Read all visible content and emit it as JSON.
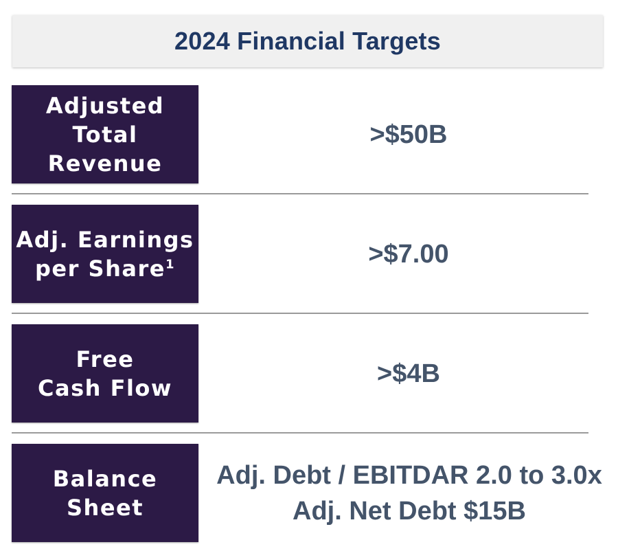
{
  "header": {
    "title": "2024 Financial Targets"
  },
  "rows": [
    {
      "label": "Adjusted\nTotal\nRevenue",
      "values": [
        ">$50B"
      ]
    },
    {
      "label": "Adj. Earnings\nper Share",
      "superscript": "1",
      "values": [
        ">$7.00"
      ]
    },
    {
      "label": "Free\nCash Flow",
      "values": [
        ">$4B"
      ]
    },
    {
      "label": "Balance\nSheet",
      "values": [
        "Adj. Debt / EBITDAR 2.0 to 3.0x",
        "Adj. Net Debt $15B"
      ]
    }
  ],
  "colors": {
    "label_bg": "#2c1a46",
    "label_text": "#ffffff",
    "title_text": "#1f3864",
    "value_text": "#44546a",
    "title_bg": "#f0f0f0",
    "divider": "#9a9a9a"
  }
}
